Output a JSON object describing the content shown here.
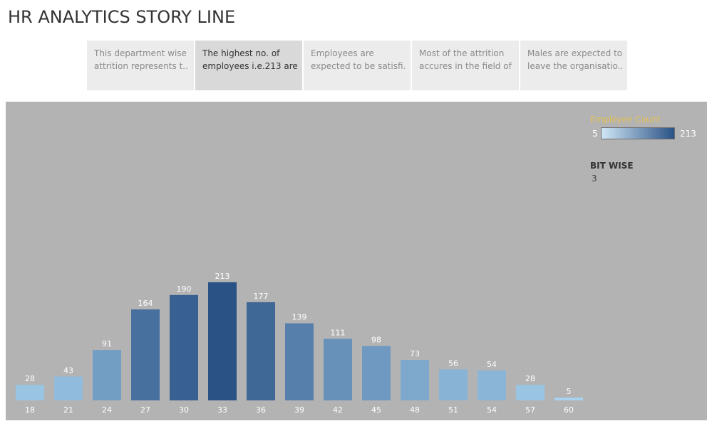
{
  "page": {
    "title": "HR ANALYTICS STORY LINE"
  },
  "story": {
    "active_index": 1,
    "points": [
      {
        "line1": "This department wise",
        "line2": "attrition represents t.."
      },
      {
        "line1": "The highest no. of",
        "line2": "employees i.e.213 are.."
      },
      {
        "line1": "Employees are",
        "line2": "expected to be satisfi.."
      },
      {
        "line1": "Most of the attrition",
        "line2": "accures in the field of .."
      },
      {
        "line1": "Males are expected to",
        "line2": "leave the organisatio.."
      }
    ]
  },
  "legend": {
    "title": "Employee Count",
    "min_label": "5",
    "max_label": "213",
    "color_low": "#cfe6f5",
    "color_high": "#2a5285",
    "title_color": "#e3c054"
  },
  "filter": {
    "title": "BIT WISE",
    "value": "3"
  },
  "chart_data": {
    "type": "bar",
    "categories": [
      "18",
      "21",
      "24",
      "27",
      "30",
      "33",
      "36",
      "39",
      "42",
      "45",
      "48",
      "51",
      "54",
      "57",
      "60"
    ],
    "values": [
      28,
      43,
      91,
      164,
      190,
      213,
      177,
      139,
      111,
      98,
      73,
      56,
      54,
      28,
      5
    ],
    "color_scale": {
      "min": 5,
      "max": 213,
      "low_color": "#a7d3ef",
      "high_color": "#2a5285"
    },
    "background": "#b3b3b3",
    "grid": false,
    "legend_position": "top-right"
  }
}
